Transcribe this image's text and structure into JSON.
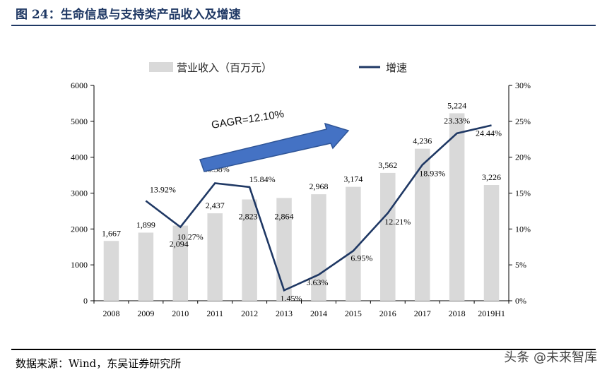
{
  "figure": {
    "title": "图 24：生命信息与支持类产品收入及增速",
    "source": "数据来源：Wind，东吴证券研究所",
    "watermark": "头条 @未来智库"
  },
  "chart_data": {
    "type": "bar",
    "title": "",
    "categories": [
      "2008",
      "2009",
      "2010",
      "2011",
      "2012",
      "2013",
      "2014",
      "2015",
      "2016",
      "2017",
      "2018",
      "2019H1"
    ],
    "series": [
      {
        "name": "营业收入（百万元）",
        "type": "bar",
        "axis": "left",
        "color": "#d9d9d9",
        "values": [
          1667,
          1899,
          2094,
          2437,
          2823,
          2864,
          2968,
          3174,
          3562,
          4236,
          5224,
          3226
        ],
        "labels": [
          "1,667",
          "1,899",
          "2,094",
          "2,437",
          "2,823",
          "2,864",
          "2,968",
          "3,174",
          "3,562",
          "4,236",
          "5,224",
          "3,226"
        ]
      },
      {
        "name": "增速",
        "type": "line",
        "axis": "right",
        "color": "#1f3864",
        "values": [
          null,
          13.92,
          10.27,
          16.38,
          15.84,
          1.45,
          3.63,
          6.95,
          12.21,
          18.93,
          23.33,
          24.44
        ],
        "labels": [
          "",
          "13.92%",
          "10.27%",
          "16.38%",
          "15.84%",
          "1.45%",
          "3.63%",
          "6.95%",
          "12.21%",
          "18.93%",
          "23.33%",
          "24.44%"
        ]
      }
    ],
    "y_left": {
      "min": 0,
      "max": 6000,
      "ticks": [
        "0",
        "1000",
        "2000",
        "3000",
        "4000",
        "5000",
        "6000"
      ]
    },
    "y_right": {
      "min": 0,
      "max": 30,
      "ticks": [
        "0%",
        "5%",
        "10%",
        "15%",
        "20%",
        "25%",
        "30%"
      ]
    },
    "legend_position": "top",
    "grid": false,
    "annotation": {
      "text": "GAGR=12.10%",
      "arrow_color": "#4472c4"
    }
  }
}
